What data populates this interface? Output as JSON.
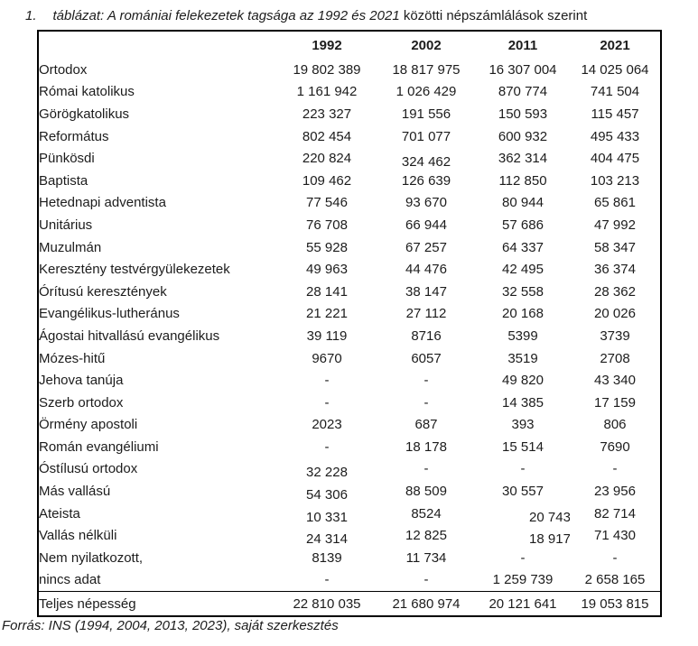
{
  "caption": {
    "number": "1.",
    "italic_part": "táblázat: A romániai felekezetek tagsága az 1992 és 2021",
    "regular_part": " közötti népszámlálások szerint"
  },
  "table": {
    "columns": [
      "1992",
      "2002",
      "2011",
      "2021"
    ],
    "rows": [
      {
        "label": "Ortodox",
        "values": [
          "19 802 389",
          "18 817 975",
          "16 307 004",
          "14 025 064"
        ]
      },
      {
        "label": "Római katolikus",
        "values": [
          "1 161 942",
          "1 026 429",
          "870 774",
          "741 504"
        ]
      },
      {
        "label": "Görögkatolikus",
        "values": [
          "223 327",
          "191 556",
          "150 593",
          "115 457"
        ]
      },
      {
        "label": "Református",
        "values": [
          "802 454",
          "701 077",
          "600 932",
          "495 433"
        ]
      },
      {
        "label": "Pünkösdi",
        "values": [
          "220 824",
          "324 462",
          "362 314",
          "404 475"
        ]
      },
      {
        "label": "Baptista",
        "values": [
          "109 462",
          "126 639",
          "112 850",
          "103 213"
        ]
      },
      {
        "label": "Hetednapi adventista",
        "values": [
          "77 546",
          "93 670",
          "80 944",
          "65 861"
        ]
      },
      {
        "label": "Unitárius",
        "values": [
          "76 708",
          "66 944",
          "57 686",
          "47 992"
        ]
      },
      {
        "label": "Muzulmán",
        "values": [
          "55 928",
          "67 257",
          "64 337",
          "58 347"
        ]
      },
      {
        "label": "Keresztény testvérgyülekezetek",
        "values": [
          "49 963",
          "44 476",
          "42 495",
          "36 374"
        ]
      },
      {
        "label": "Órítusú keresztények",
        "values": [
          "28 141",
          "38 147",
          "32 558",
          "28 362"
        ]
      },
      {
        "label": "Evangélikus-lutheránus",
        "values": [
          "21 221",
          "27 112",
          "20 168",
          "20 026"
        ]
      },
      {
        "label": "Ágostai hitvallású evangélikus",
        "values": [
          "39 119",
          "8716",
          "5399",
          "3739"
        ]
      },
      {
        "label": "Mózes-hitű",
        "values": [
          "9670",
          "6057",
          "3519",
          "2708"
        ]
      },
      {
        "label": "Jehova tanúja",
        "values": [
          "-",
          "-",
          "49 820",
          "43 340"
        ]
      },
      {
        "label": "Szerb ortodox",
        "values": [
          "-",
          "-",
          "14 385",
          "17 159"
        ]
      },
      {
        "label": "Örmény apostoli",
        "values": [
          "2023",
          "687",
          "393",
          "806"
        ]
      },
      {
        "label": "Román evangéliumi",
        "values": [
          "-",
          "18 178",
          "15 514",
          "7690"
        ]
      },
      {
        "label": "Óstílusú ortodox",
        "values": [
          "32 228",
          "-",
          "-",
          "-"
        ]
      },
      {
        "label": "Más vallású",
        "values": [
          "54 306",
          "88 509",
          "30 557",
          "23 956"
        ]
      },
      {
        "label": "Ateista",
        "values": [
          "10 331",
          "8524",
          "20 743",
          "82 714"
        ]
      },
      {
        "label": "Vallás nélküli",
        "values": [
          "24 314",
          "12 825",
          "18 917",
          "71 430"
        ]
      },
      {
        "label": "Nem nyilatkozott,",
        "values": [
          "8139",
          "11 734",
          "-",
          "-"
        ]
      },
      {
        "label": "nincs adat",
        "values": [
          "-",
          "-",
          "1 259 739",
          "2 658 165"
        ]
      }
    ],
    "total_row": {
      "label": "Teljes népesség",
      "values": [
        "22 810 035",
        "21 680 974",
        "20 121 641",
        "19 053 815"
      ]
    }
  },
  "footer": {
    "source": "Forrás: INS (1994, 2004, 2013, 2023), saját szerkesztés"
  }
}
